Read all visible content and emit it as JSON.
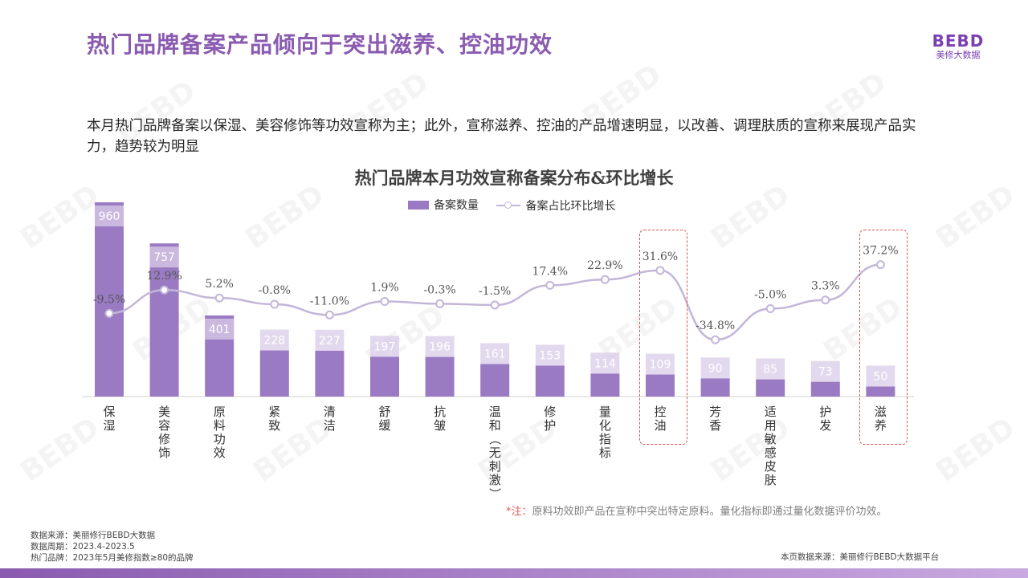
{
  "header": {
    "title": "热门品牌备案产品倾向于突出滋养、控油功效",
    "logo_mark": "BEBD",
    "logo_sub": "美修大数据"
  },
  "description": "本月热门品牌备案以保湿、美容修饰等功效宣称为主；此外，宣称滋养、控油的产品增速明显，以改善、调理肤质的宣称来展现产品实力，趋势较为明显",
  "chart_data": {
    "type": "bar",
    "title": "热门品牌本月功效宣称备案分布&环比增长",
    "legend": [
      "备案数量",
      "备案占比环比增长"
    ],
    "legend_position": "top",
    "categories": [
      "保湿",
      "美容修饰",
      "原料功效",
      "紧致",
      "清洁",
      "舒缓",
      "抗皱",
      "温和（无刺激）",
      "修护",
      "量化指标",
      "控油",
      "芳香",
      "适用敏感皮肤",
      "护发",
      "滋养"
    ],
    "series": [
      {
        "name": "备案数量",
        "type": "bar",
        "values": [
          960,
          757,
          401,
          228,
          227,
          197,
          196,
          161,
          153,
          114,
          109,
          90,
          85,
          73,
          50
        ]
      },
      {
        "name": "备案占比环比增长",
        "type": "line",
        "values": [
          -9.5,
          12.9,
          5.2,
          -0.8,
          -11.0,
          1.9,
          -0.3,
          -1.5,
          17.4,
          22.9,
          31.6,
          -34.8,
          -5.0,
          3.3,
          37.2
        ],
        "labels": [
          "-9.5%",
          "12.9%",
          "5.2%",
          "-0.8%",
          "-11.0%",
          "1.9%",
          "-0.3%",
          "-1.5%",
          "17.4%",
          "22.9%",
          "31.6%",
          "-34.8%",
          "-5.0%",
          "3.3%",
          "37.2%"
        ]
      }
    ],
    "highlighted": [
      "控油",
      "滋养"
    ],
    "grid": false,
    "colors": {
      "bar": "#9a7bc3",
      "bar_label_bg": "#d9cce8",
      "line": "#c3b6d9",
      "highlight": "#d9534f"
    }
  },
  "note": {
    "star": "*注：",
    "text": "原料功效即产品在宣称中突出特定原料。量化指标即通过量化数据评价功效。"
  },
  "source": {
    "line1": "数据来源：美丽修行BEBD大数据",
    "line2": "数据周期：2023.4-2023.5",
    "line3": "热门品牌：2023年5月美修指数≥80的品牌",
    "right": "本页数据来源：美丽修行BEBD大数据平台"
  }
}
